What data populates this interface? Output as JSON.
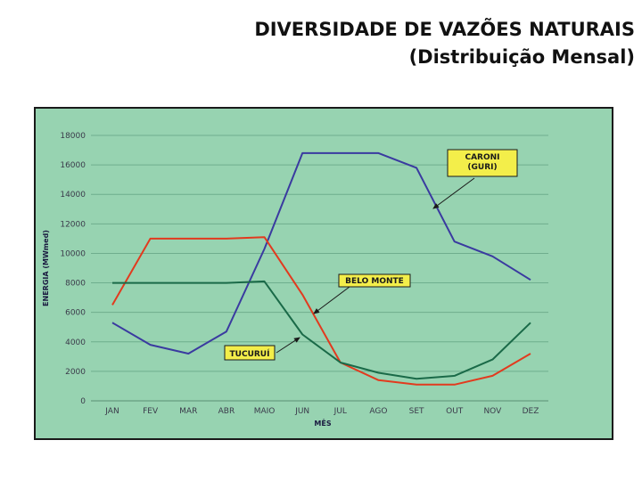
{
  "page": {
    "title_line1": "DIVERSIDADE DE VAZÕES NATURAIS",
    "title_line2": "(Distribuição Mensal)"
  },
  "chart_data": {
    "type": "line",
    "categories": [
      "JAN",
      "FEV",
      "MAR",
      "ABR",
      "MAIO",
      "JUN",
      "JUL",
      "AGO",
      "SET",
      "OUT",
      "NOV",
      "DEZ"
    ],
    "xlabel": "MÊS",
    "ylabel": "ENERGIA (MWmed)",
    "ylim": [
      0,
      18000
    ],
    "yticks": [
      0,
      2000,
      4000,
      6000,
      8000,
      10000,
      12000,
      14000,
      16000,
      18000
    ],
    "grid": true,
    "series": [
      {
        "name": "CARONI\n(GURI)",
        "color": "#3a3aa0",
        "values": [
          5300,
          3800,
          3200,
          4700,
          10300,
          16800,
          16800,
          16800,
          15800,
          10800,
          9800,
          8200
        ]
      },
      {
        "name": "BELO MONTE",
        "color": "#e23a1e",
        "values": [
          6500,
          11000,
          11000,
          11000,
          11100,
          7200,
          2600,
          1400,
          1100,
          1100,
          1700,
          3200
        ]
      },
      {
        "name": "TUCURUÍ",
        "color": "#1a6a48",
        "values": [
          8000,
          8000,
          8000,
          8000,
          8100,
          4500,
          2600,
          1900,
          1500,
          1700,
          2800,
          5300
        ]
      }
    ]
  }
}
